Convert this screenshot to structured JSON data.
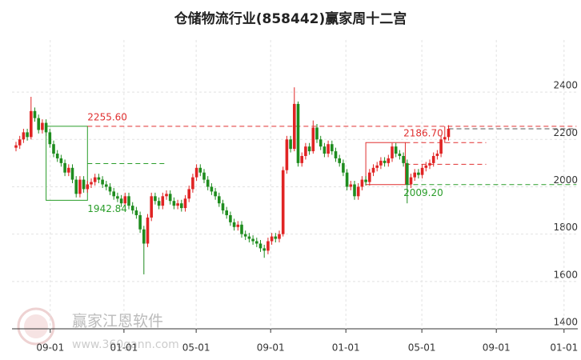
{
  "chart_data": {
    "type": "candlestick",
    "title": "仓储物流行业(858442)赢家周十二宫",
    "up_color": "#e02424",
    "down_color": "#1e8c1e",
    "ylim": [
      1400,
      2620
    ],
    "yticks": [
      1400,
      1600,
      1800,
      2000,
      2200,
      2400
    ],
    "grid": true,
    "xticks": [
      {
        "value": 9.1,
        "label": "09-01"
      },
      {
        "value": 28.7,
        "label": "01-01"
      },
      {
        "value": 47.9,
        "label": "05-01"
      },
      {
        "value": 67.7,
        "label": "09-01"
      },
      {
        "value": 87.7,
        "label": "01-01"
      },
      {
        "value": 107.9,
        "label": "05-01"
      },
      {
        "value": 127.7,
        "label": "09-01"
      },
      {
        "value": 145.7,
        "label": "01-01"
      }
    ],
    "candles": [
      [
        2165,
        2190,
        2150,
        2175
      ],
      [
        2175,
        2215,
        2160,
        2200
      ],
      [
        2200,
        2245,
        2185,
        2230
      ],
      [
        2230,
        2245,
        2195,
        2210
      ],
      [
        2210,
        2380,
        2200,
        2320
      ],
      [
        2320,
        2335,
        2275,
        2290
      ],
      [
        2290,
        2305,
        2225,
        2240
      ],
      [
        2240,
        2285,
        2225,
        2270
      ],
      [
        2270,
        2285,
        2215,
        2230
      ],
      [
        2230,
        2245,
        2165,
        2180
      ],
      [
        2180,
        2195,
        2125,
        2140
      ],
      [
        2140,
        2155,
        2105,
        2120
      ],
      [
        2120,
        2135,
        2085,
        2100
      ],
      [
        2100,
        2115,
        2045,
        2060
      ],
      [
        2060,
        2095,
        2045,
        2080
      ],
      [
        2080,
        2095,
        2015,
        2030
      ],
      [
        2030,
        2045,
        1955,
        1970
      ],
      [
        1970,
        2045,
        1955,
        2030
      ],
      [
        2030,
        2045,
        1975,
        1990
      ],
      [
        1990,
        2025,
        1975,
        2010
      ],
      [
        2010,
        2035,
        1995,
        2020
      ],
      [
        2020,
        2055,
        2005,
        2040
      ],
      [
        2040,
        2055,
        2015,
        2030
      ],
      [
        2030,
        2045,
        1995,
        2010
      ],
      [
        2010,
        2025,
        1985,
        2000
      ],
      [
        2000,
        2015,
        1965,
        1980
      ],
      [
        1980,
        1995,
        1945,
        1960
      ],
      [
        1960,
        1975,
        1935,
        1950
      ],
      [
        1950,
        1965,
        1915,
        1930
      ],
      [
        1930,
        1975,
        1915,
        1960
      ],
      [
        1960,
        1975,
        1905,
        1920
      ],
      [
        1920,
        1935,
        1885,
        1900
      ],
      [
        1900,
        1915,
        1865,
        1880
      ],
      [
        1880,
        1895,
        1805,
        1820
      ],
      [
        1820,
        1835,
        1630,
        1760
      ],
      [
        1760,
        1885,
        1745,
        1870
      ],
      [
        1870,
        1975,
        1855,
        1960
      ],
      [
        1960,
        1975,
        1925,
        1940
      ],
      [
        1940,
        1955,
        1905,
        1920
      ],
      [
        1920,
        1975,
        1905,
        1960
      ],
      [
        1960,
        1985,
        1945,
        1970
      ],
      [
        1970,
        1985,
        1925,
        1940
      ],
      [
        1940,
        1955,
        1905,
        1920
      ],
      [
        1920,
        1945,
        1905,
        1930
      ],
      [
        1930,
        1945,
        1895,
        1910
      ],
      [
        1910,
        1965,
        1895,
        1950
      ],
      [
        1950,
        2005,
        1935,
        1990
      ],
      [
        1990,
        2055,
        1975,
        2040
      ],
      [
        2040,
        2095,
        2025,
        2080
      ],
      [
        2080,
        2095,
        2045,
        2060
      ],
      [
        2060,
        2075,
        2015,
        2030
      ],
      [
        2030,
        2045,
        1985,
        2000
      ],
      [
        2000,
        2015,
        1965,
        1980
      ],
      [
        1980,
        1995,
        1945,
        1960
      ],
      [
        1960,
        1975,
        1915,
        1930
      ],
      [
        1930,
        1945,
        1885,
        1900
      ],
      [
        1900,
        1915,
        1865,
        1880
      ],
      [
        1880,
        1895,
        1835,
        1850
      ],
      [
        1850,
        1865,
        1815,
        1830
      ],
      [
        1830,
        1855,
        1815,
        1840
      ],
      [
        1840,
        1855,
        1785,
        1800
      ],
      [
        1800,
        1815,
        1775,
        1790
      ],
      [
        1790,
        1805,
        1765,
        1780
      ],
      [
        1780,
        1795,
        1755,
        1770
      ],
      [
        1770,
        1785,
        1745,
        1760
      ],
      [
        1760,
        1775,
        1725,
        1740
      ],
      [
        1740,
        1755,
        1700,
        1730
      ],
      [
        1730,
        1785,
        1715,
        1770
      ],
      [
        1770,
        1805,
        1755,
        1790
      ],
      [
        1790,
        1805,
        1765,
        1780
      ],
      [
        1780,
        1815,
        1765,
        1800
      ],
      [
        1800,
        2085,
        1790,
        2070
      ],
      [
        2070,
        2215,
        2055,
        2200
      ],
      [
        2200,
        2215,
        2145,
        2160
      ],
      [
        2160,
        2420,
        2150,
        2350
      ],
      [
        2350,
        2360,
        2085,
        2100
      ],
      [
        2100,
        2145,
        2085,
        2130
      ],
      [
        2130,
        2185,
        2115,
        2170
      ],
      [
        2170,
        2185,
        2135,
        2150
      ],
      [
        2150,
        2280,
        2140,
        2250
      ],
      [
        2250,
        2265,
        2185,
        2200
      ],
      [
        2200,
        2215,
        2155,
        2170
      ],
      [
        2170,
        2185,
        2125,
        2140
      ],
      [
        2140,
        2195,
        2125,
        2180
      ],
      [
        2180,
        2195,
        2135,
        2150
      ],
      [
        2150,
        2165,
        2105,
        2120
      ],
      [
        2120,
        2135,
        2085,
        2100
      ],
      [
        2100,
        2115,
        2045,
        2060
      ],
      [
        2060,
        2075,
        1985,
        2000
      ],
      [
        2000,
        2025,
        1985,
        2010
      ],
      [
        2010,
        2025,
        1945,
        1960
      ],
      [
        1960,
        2015,
        1945,
        2000
      ],
      [
        2000,
        2045,
        1985,
        2030
      ],
      [
        2030,
        2045,
        2005,
        2020
      ],
      [
        2020,
        2075,
        2005,
        2060
      ],
      [
        2060,
        2095,
        2045,
        2080
      ],
      [
        2080,
        2105,
        2065,
        2090
      ],
      [
        2090,
        2125,
        2075,
        2110
      ],
      [
        2110,
        2125,
        2085,
        2100
      ],
      [
        2100,
        2135,
        2085,
        2120
      ],
      [
        2120,
        2185,
        2105,
        2170
      ],
      [
        2170,
        2185,
        2125,
        2140
      ],
      [
        2140,
        2155,
        2115,
        2130
      ],
      [
        2130,
        2145,
        2085,
        2100
      ],
      [
        2100,
        2115,
        1930,
        2010
      ],
      [
        2010,
        2055,
        1995,
        2040
      ],
      [
        2040,
        2075,
        2025,
        2060
      ],
      [
        2060,
        2075,
        2035,
        2050
      ],
      [
        2050,
        2095,
        2035,
        2080
      ],
      [
        2080,
        2105,
        2065,
        2090
      ],
      [
        2090,
        2115,
        2075,
        2100
      ],
      [
        2100,
        2145,
        2085,
        2130
      ],
      [
        2130,
        2155,
        2115,
        2140
      ],
      [
        2140,
        2215,
        2125,
        2200
      ],
      [
        2200,
        2255,
        2185,
        2210
      ],
      [
        2210,
        2260,
        2195,
        2245
      ]
    ],
    "boxes": [
      {
        "from": 8,
        "to": 19,
        "low": 1942.84,
        "high": 2255.6,
        "color": "#2a9d2a"
      },
      {
        "from": 93,
        "to": 103.5,
        "low": 2009.2,
        "high": 2186.7,
        "color": "#e03030"
      }
    ],
    "levels": [
      {
        "value": 2255.6,
        "from": 19,
        "to": 149,
        "color": "#e03030"
      },
      {
        "value": 2098,
        "from": 19,
        "to": 40,
        "color": "#2a9d2a"
      },
      {
        "value": 2186.7,
        "from": 103.5,
        "to": 125,
        "color": "#e03030"
      },
      {
        "value": 2095,
        "from": 103.5,
        "to": 125,
        "color": "#e03030"
      },
      {
        "value": 2009.2,
        "from": 103.5,
        "to": 149,
        "color": "#2a9d2a"
      },
      {
        "value": 2245,
        "from": 115,
        "to": 149,
        "color": "#555555"
      }
    ],
    "labels": [
      {
        "value": 2255.6,
        "label": "2255.60",
        "at": 19,
        "color": "#e03030",
        "side": "above"
      },
      {
        "value": 1942.84,
        "label": "1942.84",
        "at": 19,
        "color": "#2a9d2a",
        "side": "below"
      },
      {
        "value": 2186.7,
        "label": "2186.70",
        "at": 103,
        "color": "#e03030",
        "side": "above"
      },
      {
        "value": 2009.2,
        "label": "2009.20",
        "at": 103,
        "color": "#2a9d2a",
        "side": "below"
      }
    ],
    "watermark": {
      "name": "赢家江恩软件",
      "url": "www.360gann.com"
    }
  }
}
